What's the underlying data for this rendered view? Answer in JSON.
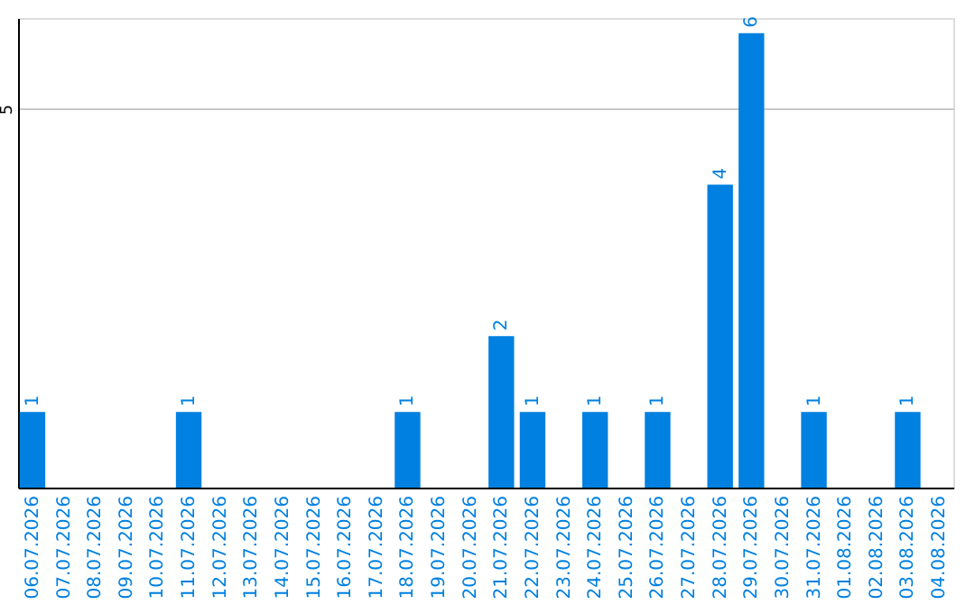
{
  "chart_data": {
    "type": "bar",
    "categories": [
      "06.07.2026",
      "07.07.2026",
      "08.07.2026",
      "09.07.2026",
      "10.07.2026",
      "11.07.2026",
      "12.07.2026",
      "13.07.2026",
      "14.07.2026",
      "15.07.2026",
      "16.07.2026",
      "17.07.2026",
      "18.07.2026",
      "19.07.2026",
      "20.07.2026",
      "21.07.2026",
      "22.07.2026",
      "23.07.2026",
      "24.07.2026",
      "25.07.2026",
      "26.07.2026",
      "27.07.2026",
      "28.07.2026",
      "29.07.2026",
      "30.07.2026",
      "31.07.2026",
      "01.08.2026",
      "02.08.2026",
      "03.08.2026",
      "04.08.2026"
    ],
    "values": [
      1,
      null,
      null,
      null,
      null,
      1,
      null,
      null,
      null,
      null,
      null,
      null,
      1,
      null,
      null,
      2,
      1,
      null,
      1,
      null,
      1,
      null,
      4,
      6,
      null,
      1,
      null,
      null,
      1,
      null
    ],
    "color": "#0080e0",
    "ylim": [
      0,
      6.2
    ],
    "yticks": [
      5
    ],
    "grid": "y",
    "data_labels": true
  }
}
